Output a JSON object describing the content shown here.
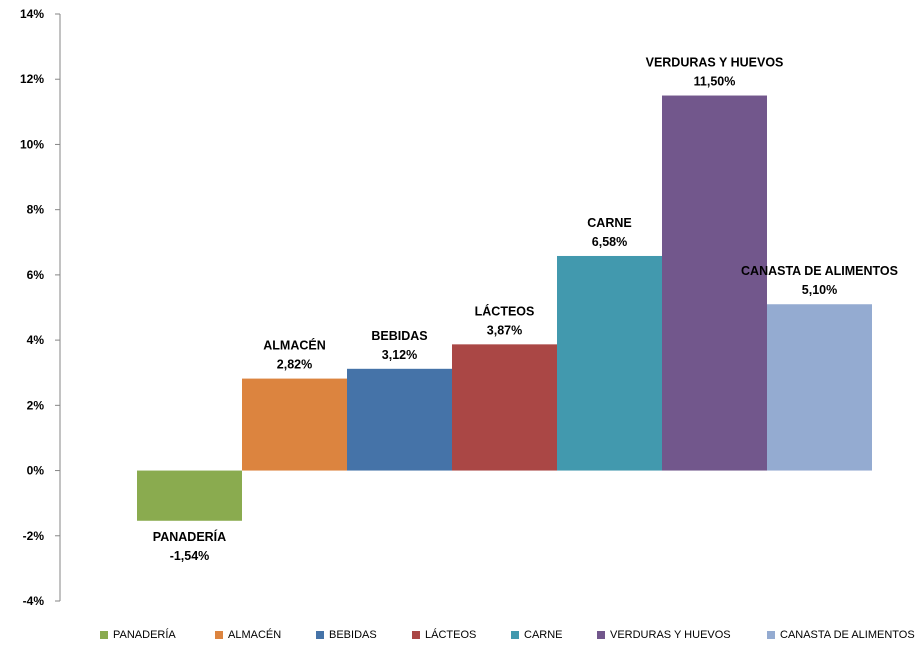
{
  "chart_data": {
    "type": "bar",
    "categories": [
      "PANADERÍA",
      "ALMACÉN",
      "BEBIDAS",
      "LÁCTEOS",
      "CARNE",
      "VERDURAS Y HUEVOS",
      "CANASTA DE ALIMENTOS"
    ],
    "values": [
      -1.54,
      2.82,
      3.12,
      3.87,
      6.58,
      11.5,
      5.1
    ],
    "value_labels": [
      "-1,54%",
      "2,82%",
      "3,12%",
      "3,87%",
      "6,58%",
      "11,50%",
      "5,10%"
    ],
    "colors": [
      "#8aab4f",
      "#dc843f",
      "#4573a8",
      "#aa4745",
      "#4299ae",
      "#72578c",
      "#94abd1"
    ],
    "ylim": [
      -4,
      14
    ],
    "yticks": [
      14,
      12,
      10,
      8,
      6,
      4,
      2,
      0,
      -2,
      -4
    ],
    "ytick_labels": [
      "14%",
      "12%",
      "10%",
      "8%",
      "6%",
      "4%",
      "2%",
      "0%",
      "-2%",
      "-4%"
    ],
    "title": "",
    "xlabel": "",
    "ylabel": "",
    "grid": false,
    "legend_position": "bottom"
  }
}
